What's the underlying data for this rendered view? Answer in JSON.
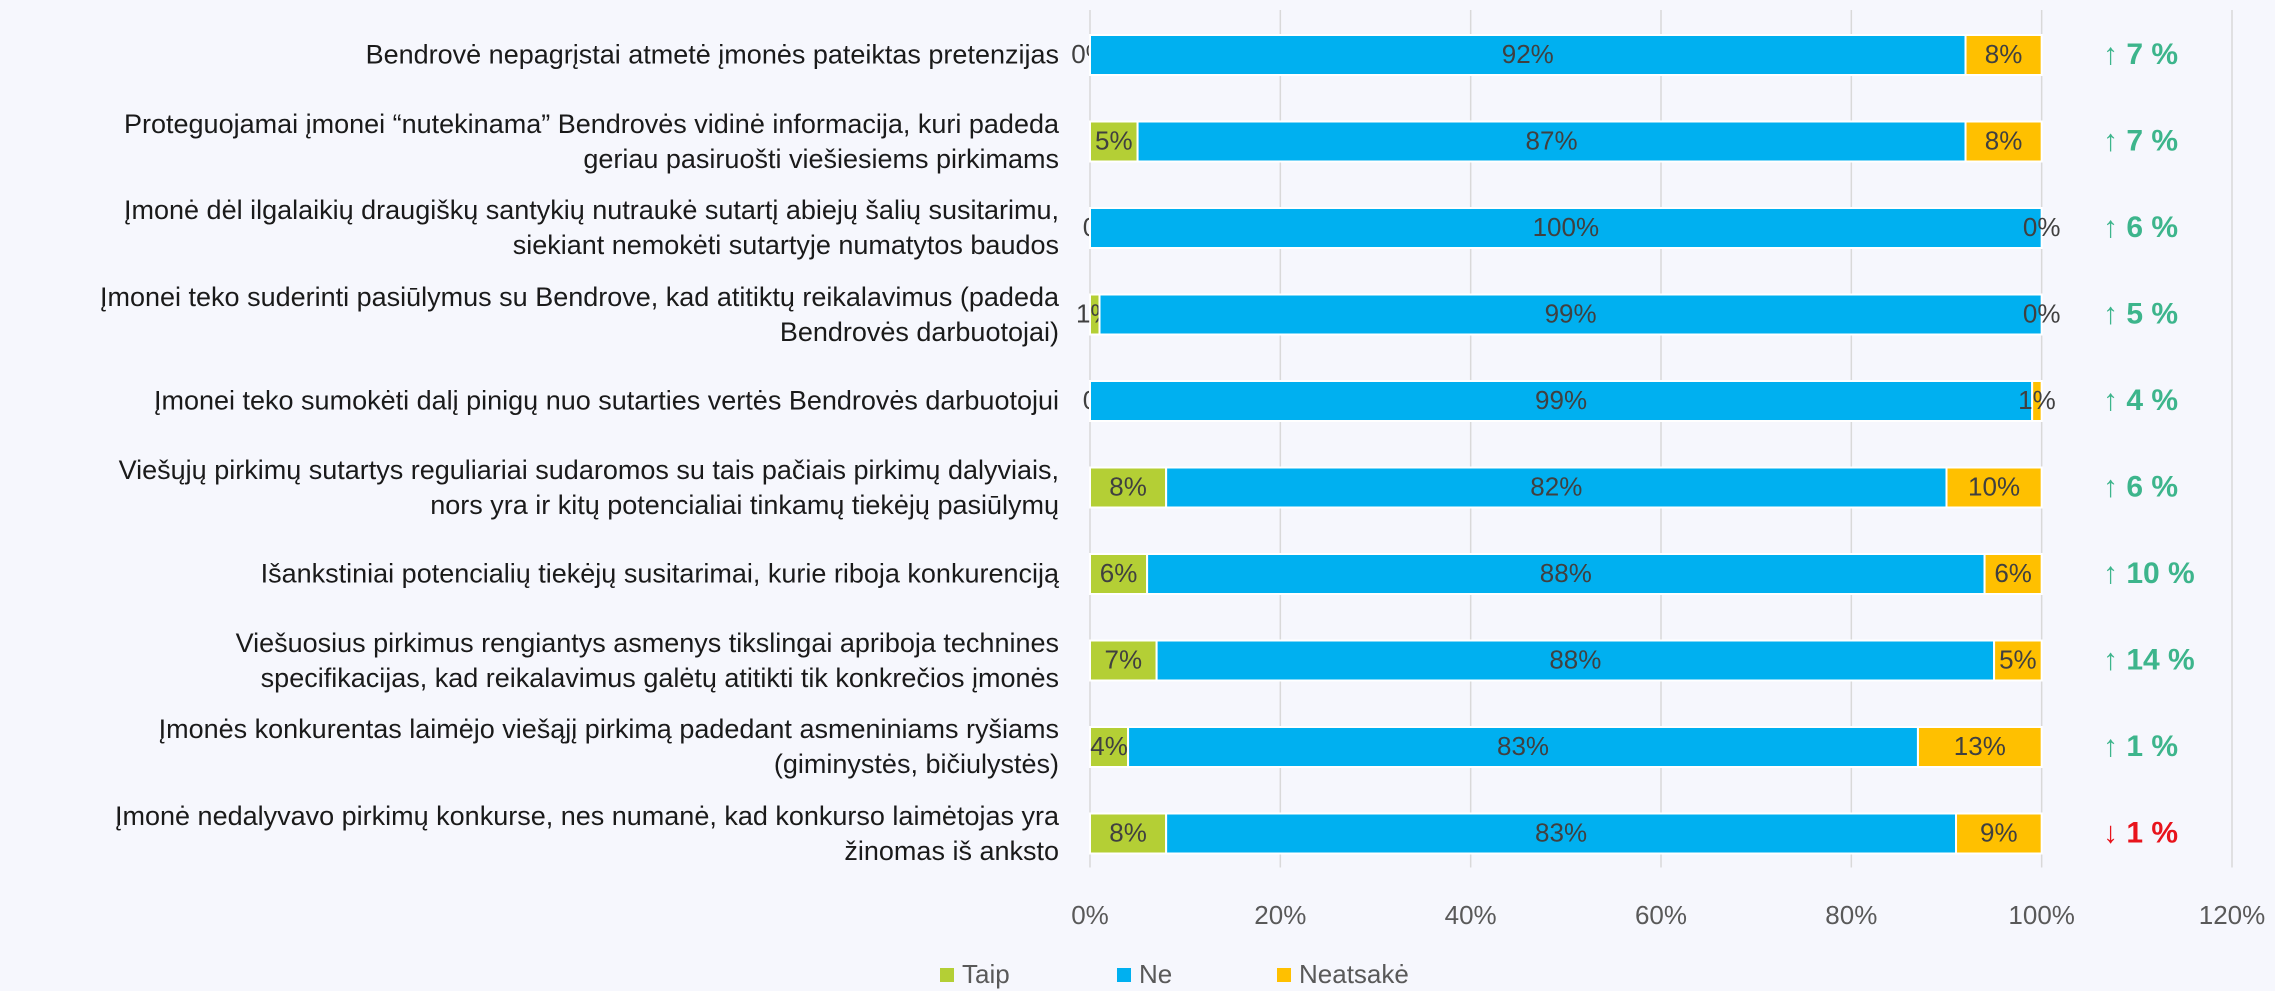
{
  "chart_data": {
    "type": "stacked_barh",
    "categories": [
      "Bendrovė nepagrįstai atmetė įmonės pateiktas pretenzijas",
      "Proteguojamai įmonei “nutekinama” Bendrovės vidinė informacija, kuri padeda\ngeriau pasiruošti viešiesiems pirkimams",
      "Įmonė dėl ilgalaikių draugiškų santykių nutraukė sutartį abiejų šalių susitarimu,\nsiekiant nemokėti sutartyje numatytos baudos",
      "Įmonei teko suderinti pasiūlymus su Bendrove, kad atitiktų reikalavimus (padeda\nBendrovės darbuotojai)",
      "Įmonei teko sumokėti dalį pinigų nuo sutarties vertės Bendrovės darbuotojui",
      "Viešųjų pirkimų sutartys reguliariai sudaromos su tais pačiais pirkimų dalyviais,\nnors yra ir kitų potencialiai tinkamų tiekėjų pasiūlymų",
      "Išankstiniai potencialių tiekėjų susitarimai, kurie riboja konkurenciją",
      "Viešuosius pirkimus rengiantys asmenys tikslingai apriboja technines\nspecifikacijas, kad reikalavimus galėtų atitikti tik konkrečios įmonės",
      "Įmonės konkurentas laimėjo viešąjį pirkimą padedant asmeniniams ryšiams\n(giminystės, bičiulystės)",
      "Įmonė nedalyvavo pirkimų konkurse, nes numanė, kad konkurso laimėtojas yra\nžinomas iš anksto"
    ],
    "series": [
      {
        "name": "Taip",
        "color": "#b4cf35",
        "values": [
          0,
          5,
          0,
          1,
          0,
          8,
          6,
          7,
          4,
          8
        ],
        "value_labels": [
          "0%",
          "5%",
          "0",
          "1%",
          "0",
          "8%",
          "6%",
          "7%",
          "4%",
          "8%"
        ]
      },
      {
        "name": "Ne",
        "color": "#00b0f0",
        "values": [
          92,
          87,
          100,
          99,
          99,
          82,
          88,
          88,
          83,
          83
        ],
        "value_labels": [
          "92%",
          "87%",
          "100%",
          "99%",
          "99%",
          "82%",
          "88%",
          "88%",
          "83%",
          "83%"
        ]
      },
      {
        "name": "Neatsakė",
        "color": "#ffc000",
        "values": [
          8,
          8,
          0,
          0,
          1,
          10,
          6,
          5,
          13,
          9
        ],
        "value_labels": [
          "8%",
          "8%",
          "0%",
          "0%",
          "1%",
          "10%",
          "6%",
          "5%",
          "13%",
          "9%"
        ]
      }
    ],
    "xlim": [
      0,
      120
    ],
    "xticks": [
      {
        "value": 0,
        "label": "0%"
      },
      {
        "value": 20,
        "label": "20%"
      },
      {
        "value": 40,
        "label": "40%"
      },
      {
        "value": 60,
        "label": "60%"
      },
      {
        "value": 80,
        "label": "80%"
      },
      {
        "value": 100,
        "label": "100%"
      },
      {
        "value": 120,
        "label": "120%"
      }
    ],
    "grid": true,
    "legend": "bottom",
    "changes": [
      {
        "text": "↑ 7 %",
        "color": "#3db58c"
      },
      {
        "text": "↑ 7 %",
        "color": "#3db58c"
      },
      {
        "text": "↑ 6 %",
        "color": "#3db58c"
      },
      {
        "text": "↑ 5 %",
        "color": "#3db58c"
      },
      {
        "text": "↑ 4 %",
        "color": "#3db58c"
      },
      {
        "text": "↑ 6 %",
        "color": "#3db58c"
      },
      {
        "text": "↑ 10 %",
        "color": "#3db58c"
      },
      {
        "text": "↑ 14 %",
        "color": "#3db58c"
      },
      {
        "text": "↑ 1 %",
        "color": "#3db58c"
      },
      {
        "text": "↓ 1 %",
        "color": "#e8141c"
      }
    ]
  }
}
